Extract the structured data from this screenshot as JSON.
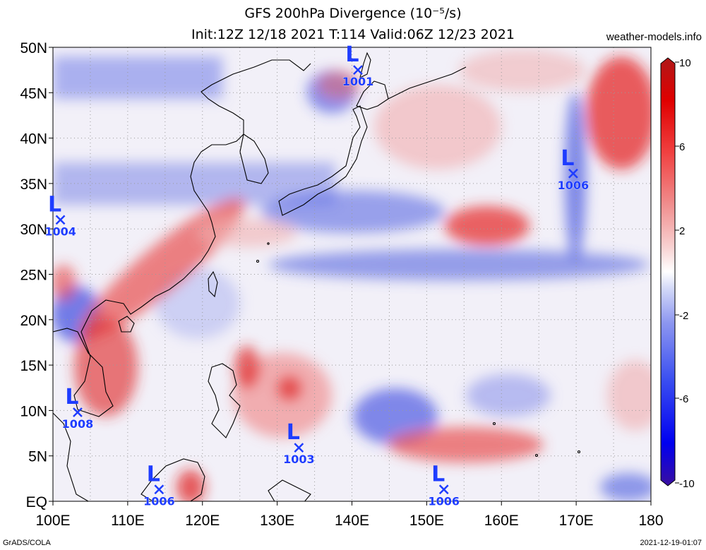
{
  "header": {
    "title": "GFS 200hPa Divergence (10⁻⁵/s)",
    "subtitle": "Init:12Z 12/18 2021 T:114 Valid:06Z 12/23 2021",
    "site": "weather-models.info"
  },
  "footer": {
    "left": "GrADS/COLA",
    "right": "2021-12-19-01:07"
  },
  "axes": {
    "lon_ticks": [
      "100E",
      "110E",
      "120E",
      "130E",
      "140E",
      "150E",
      "160E",
      "170E",
      "180"
    ],
    "lat_ticks": [
      "EQ",
      "5N",
      "10N",
      "15N",
      "20N",
      "25N",
      "30N",
      "35N",
      "40N",
      "45N",
      "50N"
    ],
    "lon_range": [
      100,
      180
    ],
    "lat_range": [
      0,
      50
    ]
  },
  "colorbar": {
    "labels": [
      "10",
      "6",
      "2",
      "-2",
      "-6",
      "-10"
    ],
    "stops": [
      "#3a0fa0",
      "#0000f0",
      "#3c50f0",
      "#8c96f0",
      "#d2d8f8",
      "#ffffff",
      "#f8d0d0",
      "#f08c8c",
      "#f04040",
      "#e00000",
      "#b01818"
    ]
  },
  "lows": [
    {
      "label": "L",
      "pressure": "1001",
      "lon": 140.8,
      "lat": 47.5
    },
    {
      "label": "L",
      "pressure": "1006",
      "lon": 169.6,
      "lat": 36.1
    },
    {
      "label": "L",
      "pressure": "1004",
      "lon": 101.0,
      "lat": 31.0
    },
    {
      "label": "L",
      "pressure": "1008",
      "lon": 103.3,
      "lat": 9.8
    },
    {
      "label": "L",
      "pressure": "1003",
      "lon": 132.9,
      "lat": 5.9
    },
    {
      "label": "L",
      "pressure": "1006",
      "lon": 114.2,
      "lat": 1.3
    },
    {
      "label": "L",
      "pressure": "1006",
      "lon": 152.3,
      "lat": 1.3
    }
  ],
  "colors": {
    "low_marker": "#1e3cff",
    "coast": "#000000"
  }
}
